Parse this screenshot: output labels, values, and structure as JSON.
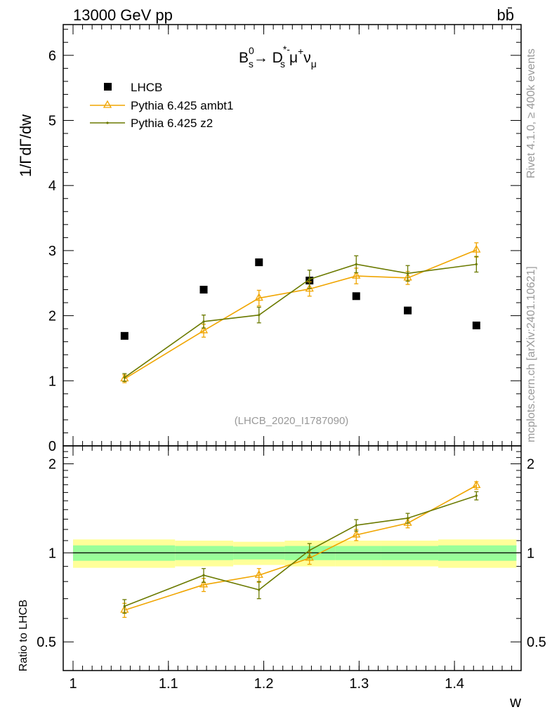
{
  "header": {
    "left_label": "13000 GeV pp",
    "right_label": "bb̄"
  },
  "side_labels": {
    "rivet": "Rivet 4.1.0, ≥ 400k events",
    "mcplots": "mcplots.cern.ch [arXiv:2401.10621]"
  },
  "analysis_id": "(LHCB_2020_I1787090)",
  "process": {
    "parts": [
      "B",
      "0",
      "s",
      "→  D",
      "*-",
      "s",
      "μ",
      "+",
      "ν",
      "μ"
    ]
  },
  "colors": {
    "data": "#000000",
    "ambt1": "#f0a500",
    "z2": "#6b7a00",
    "band_inner": "#99ff99",
    "band_outer": "#ffff99"
  },
  "chart_data": {
    "type": "line",
    "xlabel": "w",
    "ylabel": "1/ΓdΓ/dw",
    "ratio_ylabel": "Ratio to LHCB",
    "xlim": [
      0.99,
      1.47
    ],
    "ylim": [
      0,
      6.5
    ],
    "ratio_ylim": [
      0.4,
      2.3
    ],
    "x_ticks": [
      "1",
      "1.1",
      "1.2",
      "1.3",
      "1.4"
    ],
    "y_ticks": [
      "0",
      "1",
      "2",
      "3",
      "4",
      "5",
      "6"
    ],
    "ratio_ticks": [
      "0.5",
      "1",
      "2"
    ],
    "legend": [
      "LHCB",
      "Pythia 6.425 ambt1",
      "Pythia 6.425 z2"
    ],
    "bin_edges": [
      1.0,
      1.107,
      1.168,
      1.222,
      1.275,
      1.323,
      1.383,
      1.465
    ],
    "series": [
      {
        "name": "LHCB",
        "x": [
          1.054,
          1.137,
          1.195,
          1.248,
          1.297,
          1.351,
          1.423
        ],
        "values": [
          1.69,
          2.4,
          2.82,
          2.54,
          2.3,
          2.08,
          1.85
        ],
        "errors": [
          0,
          0,
          0,
          0,
          0,
          0,
          0
        ]
      },
      {
        "name": "Pythia 6.425 ambt1",
        "x": [
          1.054,
          1.137,
          1.195,
          1.248,
          1.297,
          1.351,
          1.423
        ],
        "values": [
          1.03,
          1.77,
          2.27,
          2.41,
          2.61,
          2.58,
          3.01
        ],
        "errors": [
          0.06,
          0.1,
          0.12,
          0.11,
          0.12,
          0.1,
          0.11
        ]
      },
      {
        "name": "Pythia 6.425 z2",
        "x": [
          1.054,
          1.137,
          1.195,
          1.248,
          1.297,
          1.351,
          1.423
        ],
        "values": [
          1.05,
          1.91,
          2.01,
          2.56,
          2.79,
          2.65,
          2.79
        ],
        "errors": [
          0.06,
          0.1,
          0.12,
          0.14,
          0.13,
          0.12,
          0.12
        ]
      }
    ],
    "ratio_series": [
      {
        "name": "Pythia 6.425 ambt1",
        "values": [
          0.64,
          0.78,
          0.84,
          0.96,
          1.15,
          1.26,
          1.69
        ],
        "errors": [
          0.035,
          0.04,
          0.045,
          0.045,
          0.05,
          0.045,
          0.05
        ]
      },
      {
        "name": "Pythia 6.425 z2",
        "values": [
          0.66,
          0.84,
          0.75,
          1.02,
          1.24,
          1.31,
          1.56
        ],
        "errors": [
          0.035,
          0.045,
          0.05,
          0.055,
          0.055,
          0.05,
          0.05
        ]
      }
    ],
    "ratio_band": {
      "inner": [
        0.06,
        0.055,
        0.05,
        0.055,
        0.055,
        0.055,
        0.06
      ],
      "outer": [
        0.11,
        0.1,
        0.09,
        0.1,
        0.1,
        0.1,
        0.11
      ]
    }
  }
}
